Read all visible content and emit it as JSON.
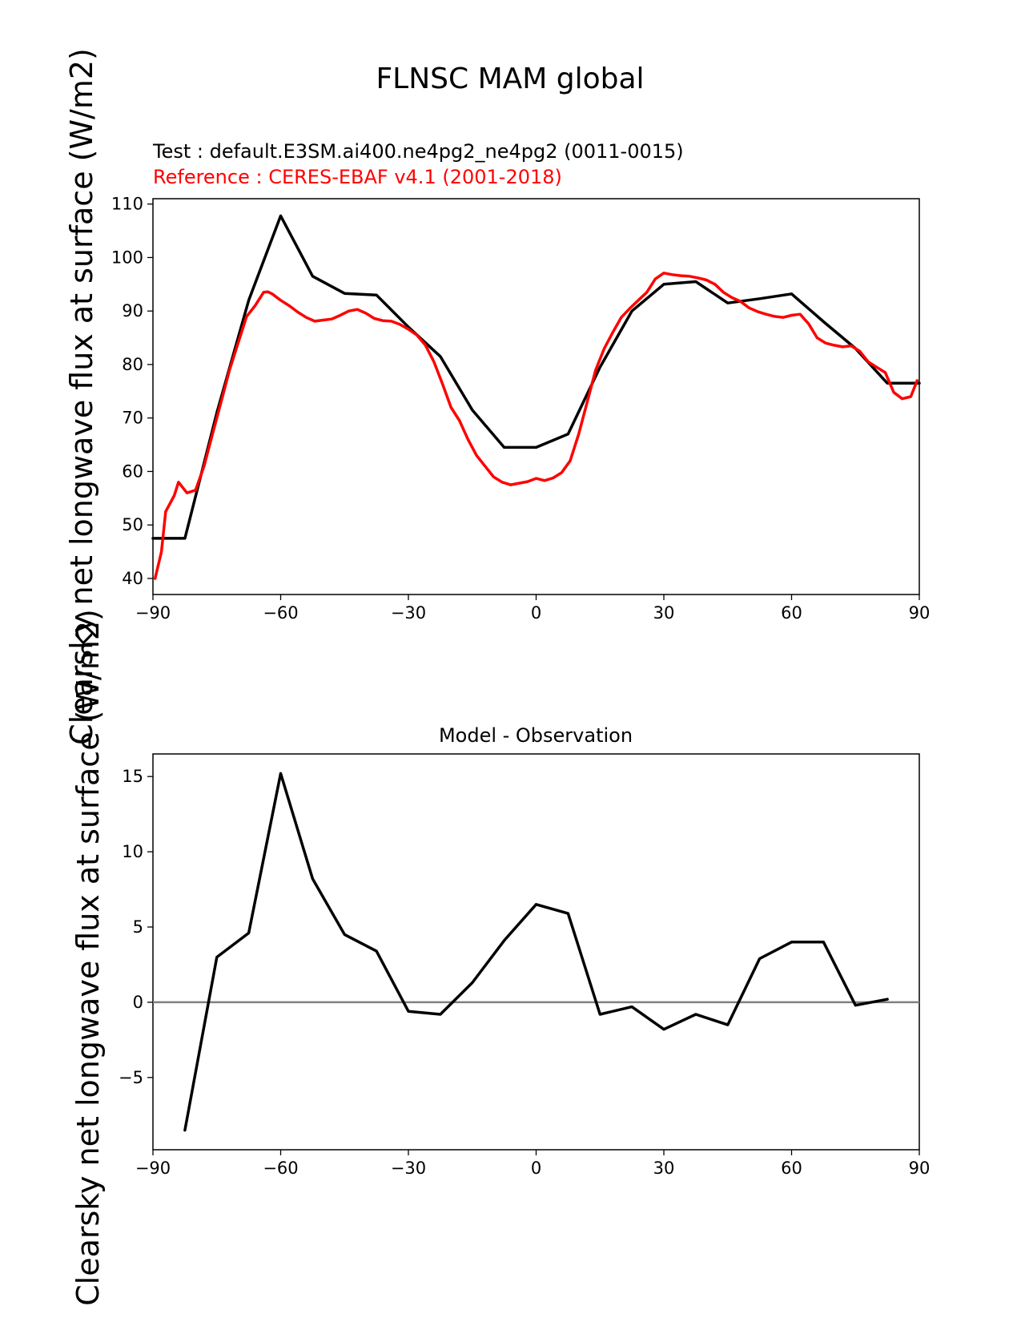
{
  "figure_title": "FLNSC MAM global",
  "test_label": "Test : default.E3SM.ai400.ne4pg2_ne4pg2 (0011-0015)",
  "reference_label": "Reference : CERES-EBAF v4.1 (2001-2018)",
  "ylabel": "Clearsky net longwave flux at surface (W/m2)",
  "colors": {
    "test": "#000000",
    "reference": "#ff0000",
    "zero_line": "#808080"
  },
  "chart_data": [
    {
      "type": "line",
      "title": "",
      "xlabel": "",
      "ylabel": "Clearsky net longwave flux at surface (W/m2)",
      "xlim": [
        -90,
        90
      ],
      "ylim": [
        37,
        111
      ],
      "xticks": [
        -90,
        -60,
        -30,
        0,
        30,
        60,
        90
      ],
      "xtick_labels": [
        "−90",
        "−60",
        "−30",
        "0",
        "30",
        "60",
        "90"
      ],
      "yticks": [
        40,
        50,
        60,
        70,
        80,
        90,
        100,
        110
      ],
      "ytick_labels": [
        "40",
        "50",
        "60",
        "70",
        "80",
        "90",
        "100",
        "110"
      ],
      "series": [
        {
          "name": "Test : default.E3SM.ai400.ne4pg2_ne4pg2 (0011-0015)",
          "color": "#000000",
          "x": [
            -90,
            -82.5,
            -75,
            -67.5,
            -60,
            -52.5,
            -45,
            -37.5,
            -30,
            -22.5,
            -15,
            -7.5,
            0,
            7.5,
            15,
            22.5,
            30,
            37.5,
            45,
            52.5,
            60,
            67.5,
            75,
            82.5,
            90
          ],
          "y": [
            47.5,
            47.5,
            71,
            92,
            107.8,
            96.5,
            93.3,
            93,
            87,
            81.5,
            71.5,
            64.5,
            64.5,
            67,
            79.5,
            90,
            95,
            95.5,
            91.5,
            92.3,
            93.2,
            88,
            83,
            76.5,
            76.5
          ]
        },
        {
          "name": "Reference : CERES-EBAF v4.1 (2001-2018)",
          "color": "#ff0000",
          "x": [
            -89.5,
            -88,
            -87,
            -85,
            -84,
            -82,
            -80,
            -78,
            -76,
            -74,
            -72,
            -70,
            -68,
            -66,
            -64,
            -63,
            -62,
            -60,
            -58,
            -56,
            -54,
            -52,
            -50,
            -48,
            -46,
            -44,
            -42,
            -40,
            -38,
            -36,
            -34,
            -32,
            -30,
            -28,
            -26,
            -24,
            -22,
            -20,
            -18,
            -16,
            -14,
            -12,
            -10,
            -8,
            -6,
            -4,
            -2,
            0,
            2,
            4,
            6,
            8,
            10,
            12,
            14,
            16,
            18,
            20,
            22,
            24,
            26,
            28,
            30,
            32,
            34,
            36,
            38,
            40,
            42,
            44,
            46,
            48,
            50,
            52,
            54,
            56,
            58,
            60,
            62,
            64,
            66,
            68,
            70,
            72,
            74,
            76,
            78,
            80,
            82,
            84,
            86,
            88,
            89.5
          ],
          "y": [
            40,
            45,
            52.5,
            55.5,
            58,
            56,
            56.5,
            61,
            67,
            73,
            79,
            84,
            89,
            91,
            93.5,
            93.6,
            93.2,
            92,
            91,
            89.8,
            88.8,
            88.1,
            88.3,
            88.5,
            89.2,
            90,
            90.3,
            89.6,
            88.6,
            88.2,
            88.1,
            87.5,
            86.6,
            85.5,
            83.6,
            80.5,
            76.4,
            72,
            69.5,
            66,
            63,
            61,
            59,
            58,
            57.5,
            57.8,
            58.1,
            58.7,
            58.3,
            58.8,
            59.8,
            62,
            67,
            73,
            79,
            83,
            86,
            88.8,
            90.5,
            92,
            93.5,
            96,
            97.1,
            96.8,
            96.6,
            96.5,
            96.2,
            95.8,
            95,
            93.5,
            92.5,
            91.8,
            90.6,
            89.9,
            89.4,
            89,
            88.8,
            89.2,
            89.4,
            87.6,
            85,
            84,
            83.6,
            83.3,
            83.5,
            82.5,
            80.5,
            79.5,
            78.5,
            74.8,
            73.6,
            74,
            77
          ]
        }
      ]
    },
    {
      "type": "line",
      "title": "Model - Observation",
      "xlabel": "",
      "ylabel": "Clearsky net longwave flux at surface (W/m2)",
      "xlim": [
        -90,
        90
      ],
      "ylim": [
        -9.8,
        16.5
      ],
      "xticks": [
        -90,
        -60,
        -30,
        0,
        30,
        60,
        90
      ],
      "xtick_labels": [
        "−90",
        "−60",
        "−30",
        "0",
        "30",
        "60",
        "90"
      ],
      "yticks": [
        -5,
        0,
        5,
        10,
        15
      ],
      "ytick_labels": [
        "−5",
        "0",
        "5",
        "10",
        "15"
      ],
      "zero_line": 0,
      "series": [
        {
          "name": "",
          "color": "#000000",
          "x": [
            -82.5,
            -75,
            -67.5,
            -60,
            -52.5,
            -45,
            -37.5,
            -30,
            -22.5,
            -15,
            -7.5,
            0,
            7.5,
            15,
            22.5,
            30,
            37.5,
            45,
            52.5,
            60,
            67.5,
            75,
            82.5
          ],
          "y": [
            -8.5,
            3.0,
            4.6,
            15.2,
            8.2,
            4.5,
            3.4,
            -0.6,
            -0.8,
            1.3,
            4.1,
            6.5,
            5.9,
            -0.8,
            -0.3,
            -1.8,
            -0.8,
            -1.5,
            2.9,
            4.0,
            4.0,
            -0.2,
            0.2
          ]
        }
      ]
    }
  ]
}
